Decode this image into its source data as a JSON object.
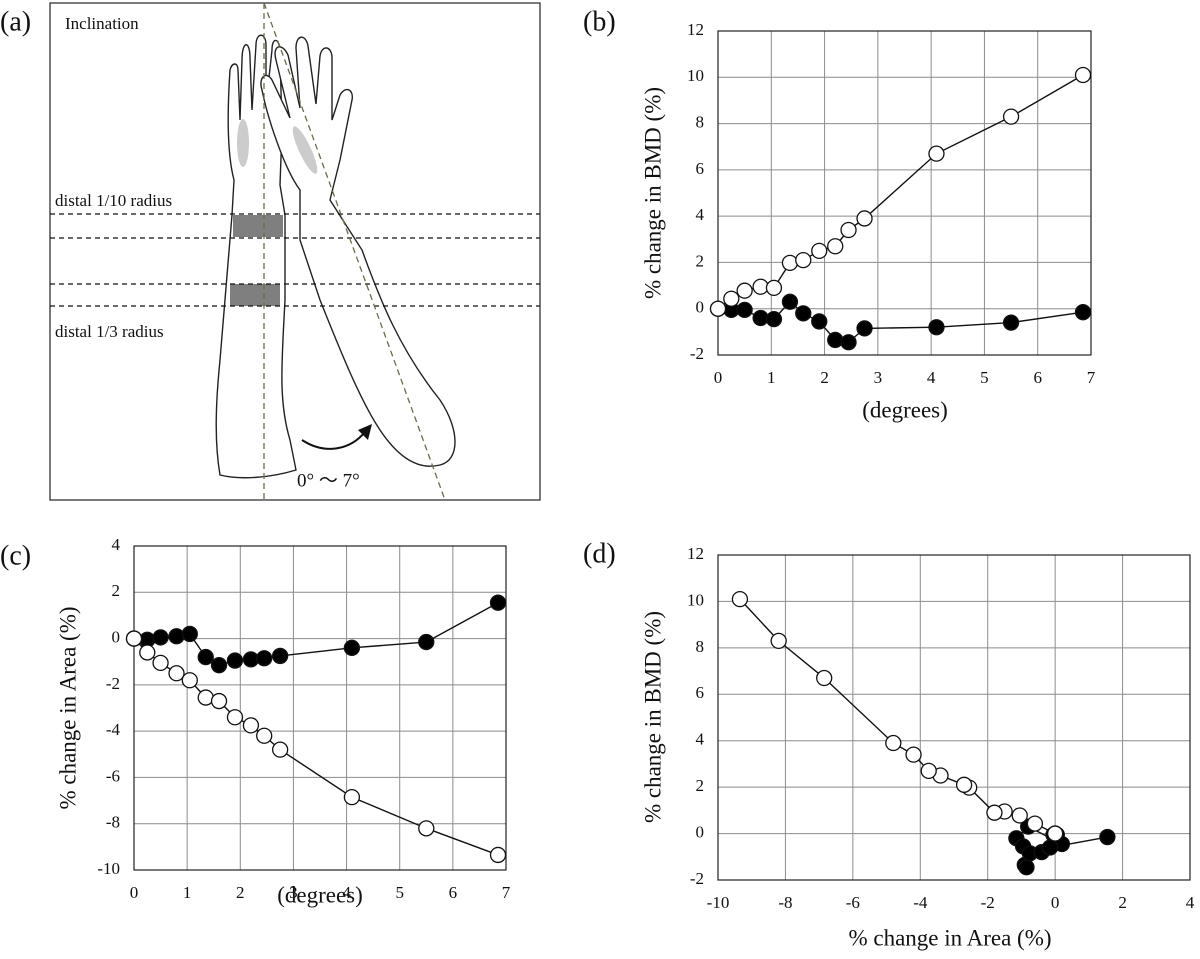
{
  "diagram": {
    "label": "(a)",
    "title": "Inclination",
    "upper_line": "distal 1/10 radius",
    "lower_line": "distal 1/3 radius",
    "range": "0°  ～  7°"
  },
  "chart_data": [
    {
      "type": "line",
      "label": "(b)",
      "x_label": "(degrees)",
      "y_label": "% change in BMD (%)",
      "x": [
        0,
        0.25,
        0.5,
        0.8,
        1.05,
        1.35,
        1.6,
        1.9,
        2.2,
        2.45,
        2.75,
        4.1,
        5.5,
        6.85
      ],
      "series": [
        {
          "color": "#000000",
          "values": [
            0,
            -0.05,
            -0.05,
            -0.4,
            -0.45,
            0.3,
            -0.2,
            -0.55,
            -1.35,
            -1.45,
            -0.85,
            -0.8,
            -0.6,
            -0.15
          ]
        },
        {
          "color": "#ffffff",
          "values": [
            0,
            0.43,
            0.78,
            0.95,
            0.9,
            1.98,
            2.1,
            2.5,
            2.7,
            3.4,
            3.9,
            6.7,
            8.3,
            10.1
          ]
        }
      ],
      "xlim": [
        0,
        7
      ],
      "xticks": [
        0,
        1,
        2,
        3,
        4,
        5,
        6,
        7
      ],
      "ylim": [
        -2,
        12
      ],
      "yticks": [
        -2,
        0,
        2,
        4,
        6,
        8,
        10,
        12
      ],
      "grid": true
    },
    {
      "type": "line",
      "label": "(c)",
      "x_label": "(degrees)",
      "y_label": "% change in Area (%)",
      "x": [
        0,
        0.25,
        0.5,
        0.8,
        1.05,
        1.35,
        1.6,
        1.9,
        2.2,
        2.45,
        2.75,
        4.1,
        5.5,
        6.85
      ],
      "series": [
        {
          "color": "#000000",
          "values": [
            0,
            -0.05,
            0.05,
            0.1,
            0.2,
            -0.8,
            -1.15,
            -0.95,
            -0.9,
            -0.85,
            -0.75,
            -0.4,
            -0.15,
            1.55
          ]
        },
        {
          "color": "#ffffff",
          "values": [
            0,
            -0.6,
            -1.05,
            -1.5,
            -1.8,
            -2.55,
            -2.7,
            -3.4,
            -3.75,
            -4.2,
            -4.8,
            -6.85,
            -8.2,
            -9.35
          ]
        }
      ],
      "xlim": [
        0,
        7
      ],
      "xticks": [
        0,
        1,
        2,
        3,
        4,
        5,
        6,
        7
      ],
      "ylim": [
        -10,
        4
      ],
      "yticks": [
        -10,
        -8,
        -6,
        -4,
        -2,
        0,
        2,
        4
      ],
      "grid": true
    },
    {
      "type": "scatter",
      "label": "(d)",
      "x_label": "% change in Area (%)",
      "y_label": "% change in BMD (%)",
      "series": [
        {
          "color": "#000000",
          "x": [
            0,
            -0.05,
            0.05,
            0.1,
            0.2,
            -0.8,
            -1.15,
            -0.95,
            -0.9,
            -0.85,
            -0.75,
            -0.4,
            -0.15,
            1.55
          ],
          "values": [
            0,
            -0.05,
            -0.05,
            -0.4,
            -0.45,
            0.3,
            -0.2,
            -0.55,
            -1.35,
            -1.45,
            -0.85,
            -0.8,
            -0.6,
            -0.15
          ]
        },
        {
          "color": "#ffffff",
          "x": [
            0,
            -0.6,
            -1.05,
            -1.5,
            -1.8,
            -2.55,
            -2.7,
            -3.4,
            -3.75,
            -4.2,
            -4.8,
            -6.85,
            -8.2,
            -9.35
          ],
          "values": [
            0,
            0.43,
            0.78,
            0.95,
            0.9,
            1.98,
            2.1,
            2.5,
            2.7,
            3.4,
            3.9,
            6.7,
            8.3,
            10.1
          ]
        }
      ],
      "xlim": [
        -10,
        4
      ],
      "xticks": [
        -10,
        -8,
        -6,
        -4,
        -2,
        0,
        2,
        4
      ],
      "ylim": [
        -2,
        12
      ],
      "yticks": [
        -2,
        0,
        2,
        4,
        6,
        8,
        10,
        12
      ],
      "grid": true
    }
  ]
}
